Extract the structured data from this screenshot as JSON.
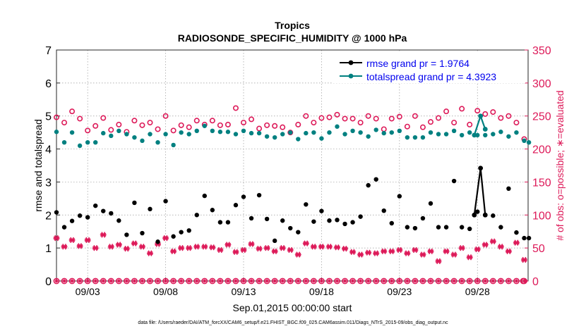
{
  "chart_data": {
    "type": "scatter",
    "title": "Tropics",
    "subtitle": "RADIOSONDE_SPECIFIC_HUMIDITY @ 1000 hPa",
    "xlabel": "Sep.01,2015 00:00:00 start",
    "ylabel_left": "rmse and totalspread",
    "ylabel_right": "# of obs: o=possible; ∗=evaluated",
    "footer": "data file: /Users/raeder/DAI/ATM_forcXX/CAM6_setup/f.e21.FHIST_BGC.f09_025.CAM6assim.011/Diags_NTrS_2015-09/obs_diag_output.nc",
    "xlim": [
      1,
      31.25
    ],
    "ylim_left": [
      0,
      7
    ],
    "ylim_right": [
      0,
      350
    ],
    "x_ticks": [
      3,
      8,
      13,
      18,
      23,
      28
    ],
    "x_tick_labels": [
      "09/03",
      "09/08",
      "09/13",
      "09/18",
      "09/23",
      "09/28"
    ],
    "y_ticks_left": [
      0,
      1,
      2,
      3,
      4,
      5,
      6,
      7
    ],
    "y_ticks_right": [
      0,
      50,
      100,
      150,
      200,
      250,
      300,
      350
    ],
    "x": [
      1,
      1.5,
      2,
      2.5,
      3,
      3.5,
      4,
      4.5,
      5,
      5.5,
      6,
      6.5,
      7,
      7.5,
      8,
      8.5,
      9,
      9.5,
      10,
      10.5,
      11,
      11.5,
      12,
      12.5,
      13,
      13.5,
      14,
      14.5,
      15,
      15.5,
      16,
      16.5,
      17,
      17.5,
      18,
      18.5,
      19,
      19.5,
      20,
      20.5,
      21,
      21.5,
      22,
      22.5,
      23,
      23.5,
      24,
      24.5,
      25,
      25.5,
      26,
      26.5,
      27,
      27.5,
      28,
      28.5,
      29,
      29.5,
      30,
      30.5,
      31
    ],
    "series": [
      {
        "name": "rmse grand pr = 1.9764",
        "axis": "left",
        "color": "#000000",
        "values": [
          2.08,
          1.63,
          1.82,
          1.98,
          1.93,
          2.28,
          2.12,
          2.05,
          1.83,
          1.4,
          2.37,
          1.45,
          2.18,
          1.19,
          2.42,
          1.35,
          1.48,
          1.53,
          2.0,
          2.58,
          2.15,
          1.78,
          1.78,
          2.3,
          2.55,
          1.9,
          2.6,
          1.88,
          1.22,
          1.83,
          1.6,
          1.48,
          2.32,
          1.8,
          2.12,
          1.83,
          1.85,
          1.73,
          1.78,
          1.95,
          2.9,
          3.08,
          2.13,
          1.75,
          2.57,
          1.63,
          1.6,
          1.9,
          2.35,
          1.63,
          1.63,
          3.03,
          1.63,
          1.58,
          2.1,
          2.0,
          1.98,
          1.63,
          2.8,
          1.47,
          1.3
        ],
        "highlight": {
          "x": [
            27.8,
            28.2,
            28.5
          ],
          "values": [
            2.0,
            3.42,
            2.0
          ]
        },
        "end_point": {
          "x": 31.3,
          "value": 1.3
        }
      },
      {
        "name": "totalspread grand pr = 4.3923",
        "axis": "left",
        "color": "#008080",
        "values": [
          4.52,
          4.2,
          4.5,
          4.1,
          4.2,
          4.2,
          4.48,
          4.4,
          4.55,
          4.45,
          4.35,
          4.25,
          4.45,
          4.2,
          4.45,
          4.12,
          4.5,
          4.45,
          4.55,
          4.7,
          4.55,
          4.52,
          4.52,
          4.45,
          4.55,
          4.48,
          4.48,
          4.38,
          4.35,
          4.45,
          4.5,
          4.3,
          4.48,
          4.5,
          4.32,
          4.5,
          4.68,
          4.45,
          4.55,
          4.5,
          4.38,
          4.58,
          4.48,
          4.5,
          4.55,
          4.35,
          4.35,
          4.35,
          4.5,
          4.45,
          4.45,
          4.55,
          4.42,
          4.5,
          4.42,
          4.42,
          4.45,
          4.52,
          4.38,
          4.5,
          4.25
        ],
        "highlight": {
          "x": [
            27.8,
            28.2,
            28.5
          ],
          "values": [
            4.42,
            5.0,
            4.6
          ]
        },
        "end_point": {
          "x": 31.3,
          "value": 4.2
        }
      },
      {
        "name": "possible",
        "axis": "right",
        "marker": "circle-open",
        "color": "#dd1a59",
        "values": [
          248,
          240,
          257,
          246,
          228,
          235,
          247,
          229,
          237,
          226,
          243,
          236,
          240,
          230,
          250,
          228,
          236,
          233,
          243,
          237,
          243,
          236,
          237,
          262,
          240,
          245,
          231,
          236,
          235,
          233,
          225,
          237,
          250,
          240,
          247,
          248,
          252,
          246,
          246,
          240,
          250,
          246,
          230,
          246,
          249,
          234,
          250,
          233,
          241,
          247,
          257,
          240,
          261,
          237,
          258,
          253,
          256,
          247,
          250,
          240,
          215
        ]
      },
      {
        "name": "evaluated",
        "axis": "right",
        "marker": "asterisk",
        "color": "#dd1a59",
        "values": [
          65,
          52,
          62,
          53,
          62,
          50,
          70,
          52,
          55,
          49,
          57,
          52,
          42,
          56,
          65,
          45,
          50,
          50,
          52,
          52,
          51,
          47,
          55,
          44,
          47,
          56,
          49,
          50,
          45,
          50,
          47,
          40,
          57,
          52,
          52,
          52,
          51,
          49,
          44,
          40,
          43,
          42,
          45,
          45,
          47,
          42,
          47,
          40,
          45,
          30,
          45,
          40,
          50,
          36,
          48,
          55,
          60,
          52,
          45,
          58,
          32
        ]
      }
    ],
    "zero_row": {
      "axis": "right",
      "value": 0
    }
  }
}
